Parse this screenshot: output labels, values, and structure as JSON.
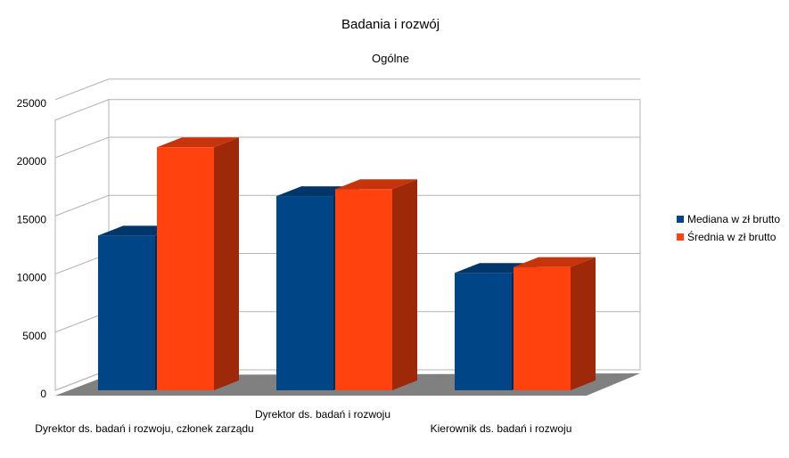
{
  "chart_data": {
    "type": "bar",
    "title": "Badania i rozwój",
    "subtitle": "Ogólne",
    "categories": [
      "Dyrektor ds. badań i rozwoju, członek zarządu",
      "Dyrektor ds. badań i rozwoju",
      "Kierownik ds. badań i rozwoju"
    ],
    "series": [
      {
        "name": "Mediana w zł brutto",
        "values": [
          13300,
          16700,
          10100
        ],
        "color": "#004586"
      },
      {
        "name": "Średnia w zł brutto",
        "values": [
          20900,
          17300,
          10600
        ],
        "color": "#ff420e"
      }
    ],
    "yticks": [
      "0",
      "5000",
      "10000",
      "15000",
      "20000",
      "25000"
    ],
    "ylim": [
      0,
      25000
    ],
    "xlabel": "",
    "ylabel": "",
    "grid": true,
    "legend_position": "right",
    "style": "3d"
  }
}
